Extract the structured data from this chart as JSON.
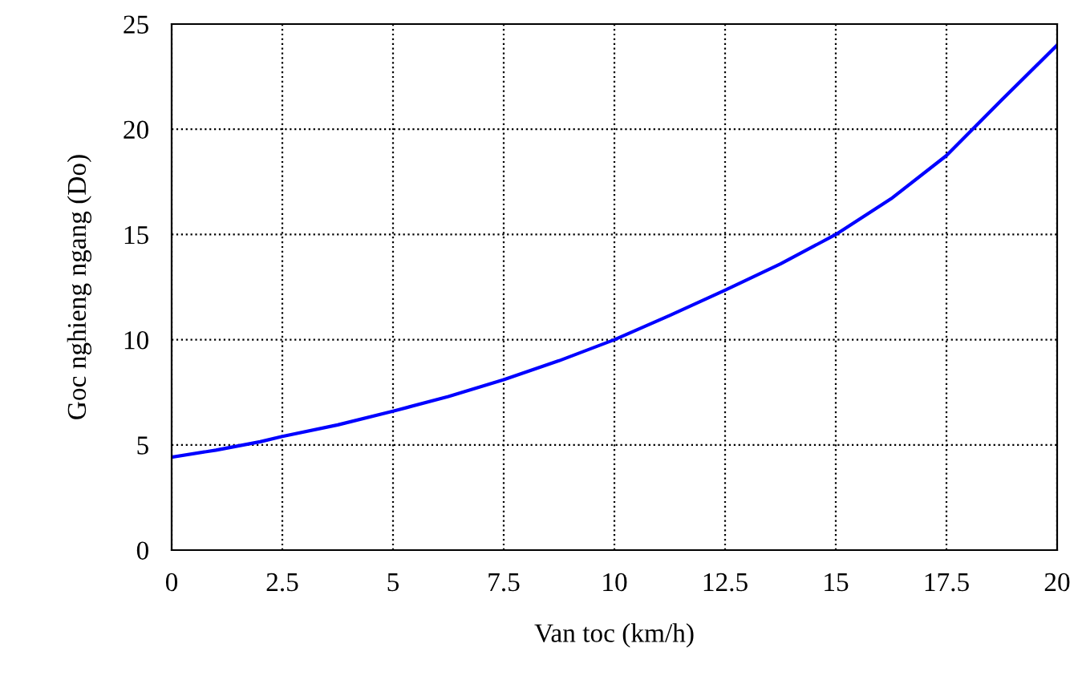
{
  "chart_data": {
    "type": "line",
    "xlabel": "Van toc (km/h)",
    "ylabel": "Goc nghieng ngang (Do)",
    "series": [
      {
        "color": "#0000ff",
        "x": [
          0,
          1,
          2,
          2.5,
          3.75,
          5,
          6.25,
          7.5,
          8.75,
          10,
          11.25,
          12.5,
          13.75,
          15,
          16.25,
          17.5,
          18.75,
          20
        ],
        "values": [
          4.42,
          4.75,
          5.15,
          5.4,
          5.95,
          6.6,
          7.3,
          8.1,
          9.0,
          10.0,
          11.15,
          12.35,
          13.6,
          15.0,
          16.7,
          18.75,
          21.4,
          24.0
        ]
      }
    ],
    "xlim": [
      0,
      20
    ],
    "xticks": [
      0,
      2.5,
      5,
      7.5,
      10,
      12.5,
      15,
      17.5,
      20
    ],
    "ylim": [
      0,
      25
    ],
    "yticks": [
      0,
      5,
      10,
      15,
      20,
      25
    ],
    "grid": true,
    "line_style": "solid"
  }
}
